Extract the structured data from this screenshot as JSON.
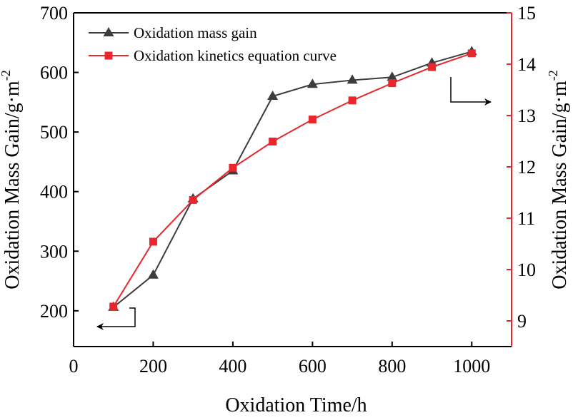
{
  "chart_data": {
    "type": "line",
    "x": [
      100,
      200,
      300,
      400,
      500,
      600,
      700,
      800,
      900,
      1000
    ],
    "xlabel": "Oxidation Time/h",
    "xlim": [
      0,
      1100
    ],
    "xticks": [
      0,
      200,
      400,
      600,
      800,
      1000
    ],
    "ylabel": "Oxidation Mass Gain/g·m",
    "ylabel_superscript": "-2",
    "ylim": [
      140,
      700
    ],
    "yticks": [
      200,
      300,
      400,
      500,
      600,
      700
    ],
    "y2label": "Oxidation Mass Gain/g·m",
    "y2label_superscript": "-2",
    "y2lim": [
      8.5,
      15
    ],
    "y2ticks": [
      9,
      10,
      11,
      12,
      13,
      14,
      15
    ],
    "legend_position": "top-left",
    "series": [
      {
        "name": "Oxidation mass gain",
        "axis": "left",
        "marker": "triangle",
        "color": "#3c3c3c",
        "values": [
          206,
          260,
          388,
          435,
          560,
          580,
          587,
          592,
          616,
          635
        ]
      },
      {
        "name": "Oxidation kinetics equation curve",
        "axis": "left",
        "marker": "square",
        "color": "#e8262b",
        "values": [
          207,
          316,
          386,
          440,
          484,
          521,
          553,
          582,
          609,
          632
        ]
      }
    ],
    "annotations": [
      {
        "type": "arrow",
        "points_to": "left-axis",
        "near_series": "Oxidation mass gain"
      },
      {
        "type": "arrow",
        "points_to": "right-axis",
        "near_series": "Oxidation kinetics equation curve"
      }
    ]
  }
}
